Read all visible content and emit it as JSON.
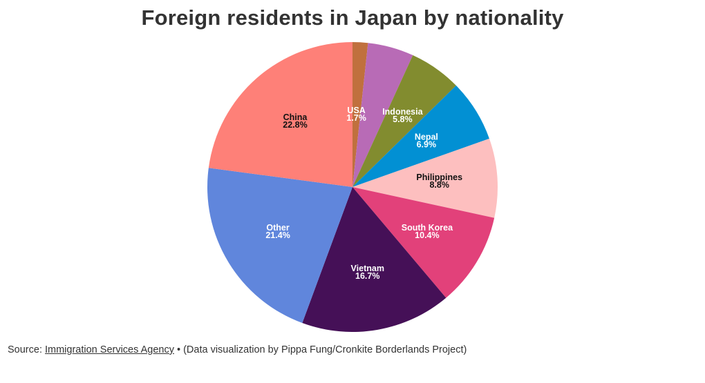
{
  "chart_data": {
    "type": "pie",
    "title": "Foreign residents in Japan by nationality",
    "start_angle_deg": 0,
    "direction": "clockwise",
    "slices": [
      {
        "label": "USA",
        "value": 1.7,
        "value_label": "1.7%",
        "color": "#c0703e",
        "label_color": "#ffffff"
      },
      {
        "label": "",
        "value": 5.1,
        "value_label": "",
        "color": "#b86bb6",
        "label_color": "#ffffff"
      },
      {
        "label": "Indonesia",
        "value": 5.8,
        "value_label": "5.8%",
        "color": "#828c2f",
        "label_color": "#ffffff"
      },
      {
        "label": "Nepal",
        "value": 6.9,
        "value_label": "6.9%",
        "color": "#0290d3",
        "label_color": "#ffffff"
      },
      {
        "label": "Philippines",
        "value": 8.8,
        "value_label": "8.8%",
        "color": "#fdbfbf",
        "label_color": "#111111"
      },
      {
        "label": "South Korea",
        "value": 10.4,
        "value_label": "10.4%",
        "color": "#e2417a",
        "label_color": "#ffffff"
      },
      {
        "label": "Vietnam",
        "value": 16.7,
        "value_label": "16.7%",
        "color": "#451057",
        "label_color": "#ffffff"
      },
      {
        "label": "Other",
        "value": 21.4,
        "value_label": "21.4%",
        "color": "#6086dc",
        "label_color": "#ffffff"
      },
      {
        "label": "China",
        "value": 22.8,
        "value_label": "22.8%",
        "color": "#fe8078",
        "label_color": "#111111"
      }
    ]
  },
  "source": {
    "prefix": "Source: ",
    "link_text": "Immigration Services Agency",
    "suffix": " • (Data visualization by Pippa Fung/Cronkite Borderlands Project)"
  }
}
